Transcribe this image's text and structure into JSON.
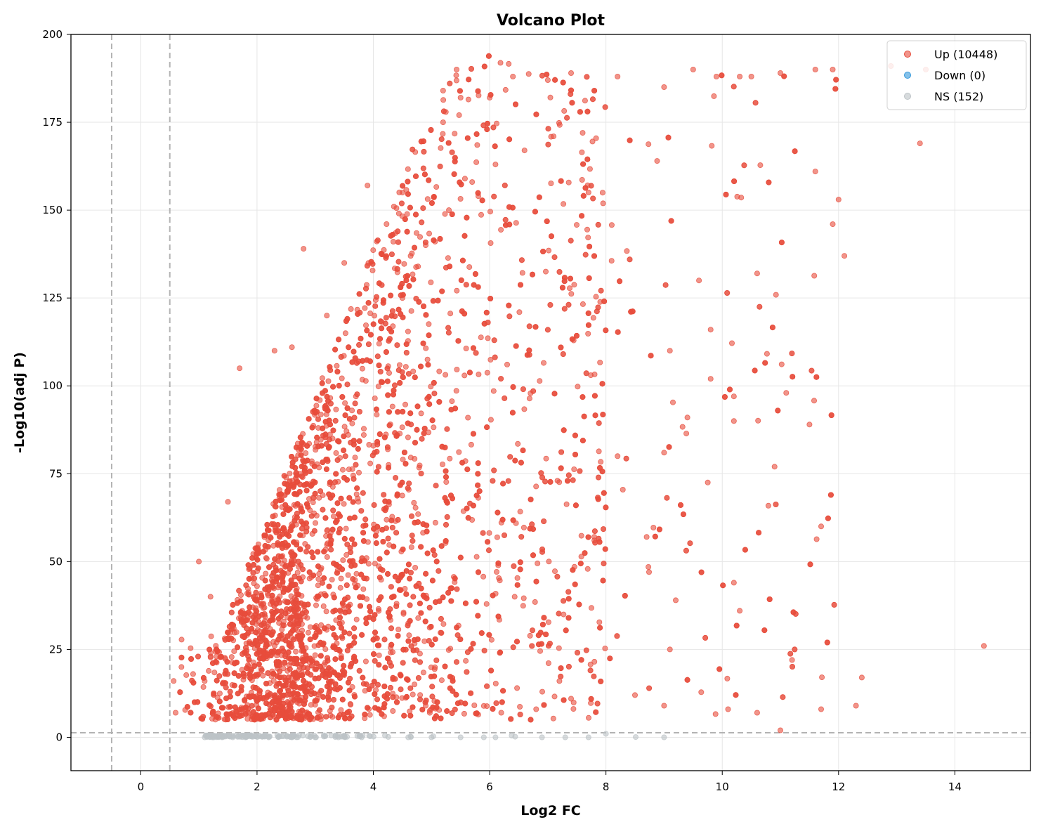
{
  "chart_data": {
    "type": "scatter",
    "title": "Volcano Plot",
    "xlabel": "Log2 FC",
    "ylabel": "-Log10(adj P)",
    "xlim": [
      -1.2,
      15.3
    ],
    "ylim": [
      -9.5,
      200
    ],
    "xticks": [
      0,
      2,
      4,
      6,
      8,
      10,
      12,
      14
    ],
    "yticks": [
      0,
      25,
      50,
      75,
      100,
      125,
      150,
      175,
      200
    ],
    "grid": true,
    "legend_position": "top-right",
    "threshold_lines": {
      "fc": [
        -0.5,
        0.5
      ],
      "neg_log10_p": 1.3
    },
    "series": [
      {
        "name": "Up (10448)",
        "color": "#e74c3c",
        "count": 10448,
        "sample_points": [
          [
            0.6,
            7
          ],
          [
            0.7,
            20
          ],
          [
            0.9,
            18
          ],
          [
            1.0,
            50
          ],
          [
            1.2,
            40
          ],
          [
            1.5,
            67
          ],
          [
            1.7,
            105
          ],
          [
            2.3,
            110
          ],
          [
            2.6,
            111
          ],
          [
            2.8,
            139
          ],
          [
            3.2,
            120
          ],
          [
            3.5,
            135
          ],
          [
            3.9,
            157
          ],
          [
            4.5,
            155
          ],
          [
            5.2,
            175
          ],
          [
            5.5,
            182
          ],
          [
            6.0,
            182
          ],
          [
            6.4,
            188
          ],
          [
            7.0,
            187
          ],
          [
            7.4,
            189
          ],
          [
            8.2,
            188
          ],
          [
            9.0,
            185
          ],
          [
            9.5,
            190
          ],
          [
            9.9,
            188
          ],
          [
            10.3,
            188
          ],
          [
            10.5,
            188
          ],
          [
            11.0,
            189
          ],
          [
            11.6,
            190
          ],
          [
            11.9,
            190
          ],
          [
            12.9,
            191
          ],
          [
            13.5,
            190
          ],
          [
            13.4,
            169
          ],
          [
            12.0,
            153
          ],
          [
            11.9,
            146
          ],
          [
            12.1,
            137
          ],
          [
            11.6,
            161
          ],
          [
            10.6,
            132
          ],
          [
            10.2,
            97
          ],
          [
            11.1,
            98
          ],
          [
            11.5,
            89
          ],
          [
            10.2,
            90
          ],
          [
            10.9,
            77
          ],
          [
            11.7,
            60
          ],
          [
            10.2,
            44
          ],
          [
            10.3,
            36
          ],
          [
            11.2,
            22
          ],
          [
            11.7,
            8
          ],
          [
            12.3,
            9
          ],
          [
            12.4,
            17
          ],
          [
            14.5,
            26
          ],
          [
            11.0,
            2
          ],
          [
            10.6,
            7
          ],
          [
            10.1,
            8
          ],
          [
            9.0,
            9
          ],
          [
            9.1,
            25
          ],
          [
            9.2,
            39
          ],
          [
            9.0,
            81
          ],
          [
            9.4,
            91
          ],
          [
            9.8,
            102
          ],
          [
            9.1,
            110
          ],
          [
            9.6,
            130
          ],
          [
            9.8,
            116
          ],
          [
            8.5,
            12
          ],
          [
            8.7,
            57
          ],
          [
            8.2,
            80
          ],
          [
            7.8,
            56
          ],
          [
            7.2,
            16
          ],
          [
            7.4,
            11
          ],
          [
            6.8,
            8
          ],
          [
            6.2,
            7
          ],
          [
            5.5,
            10
          ],
          [
            4.9,
            9
          ],
          [
            1.1,
            16
          ],
          [
            1.3,
            23
          ],
          [
            1.6,
            31
          ],
          [
            2.0,
            43
          ],
          [
            2.5,
            54
          ],
          [
            2.9,
            72
          ],
          [
            3.3,
            85
          ],
          [
            3.7,
            97
          ],
          [
            4.1,
            112
          ],
          [
            4.5,
            125
          ],
          [
            4.9,
            140
          ],
          [
            5.3,
            150
          ],
          [
            5.7,
            158
          ],
          [
            6.1,
            163
          ],
          [
            6.6,
            167
          ],
          [
            7.1,
            171
          ],
          [
            7.6,
            172
          ]
        ]
      },
      {
        "name": "Down (0)",
        "color": "#3498db",
        "count": 0,
        "sample_points": []
      },
      {
        "name": "NS (152)",
        "color": "#bdc3c7",
        "count": 152,
        "sample_points": [
          [
            1.1,
            0
          ],
          [
            1.4,
            0
          ],
          [
            1.8,
            0
          ],
          [
            2.2,
            0
          ],
          [
            2.6,
            0
          ],
          [
            3.0,
            0
          ],
          [
            3.4,
            0
          ],
          [
            3.8,
            0
          ],
          [
            4.2,
            0.5
          ],
          [
            4.6,
            0
          ],
          [
            5.0,
            0
          ],
          [
            5.5,
            0
          ],
          [
            5.9,
            0
          ],
          [
            6.1,
            0
          ],
          [
            6.9,
            0
          ],
          [
            7.3,
            0
          ],
          [
            7.7,
            0
          ],
          [
            8.0,
            1
          ],
          [
            9.0,
            0
          ]
        ]
      }
    ]
  }
}
